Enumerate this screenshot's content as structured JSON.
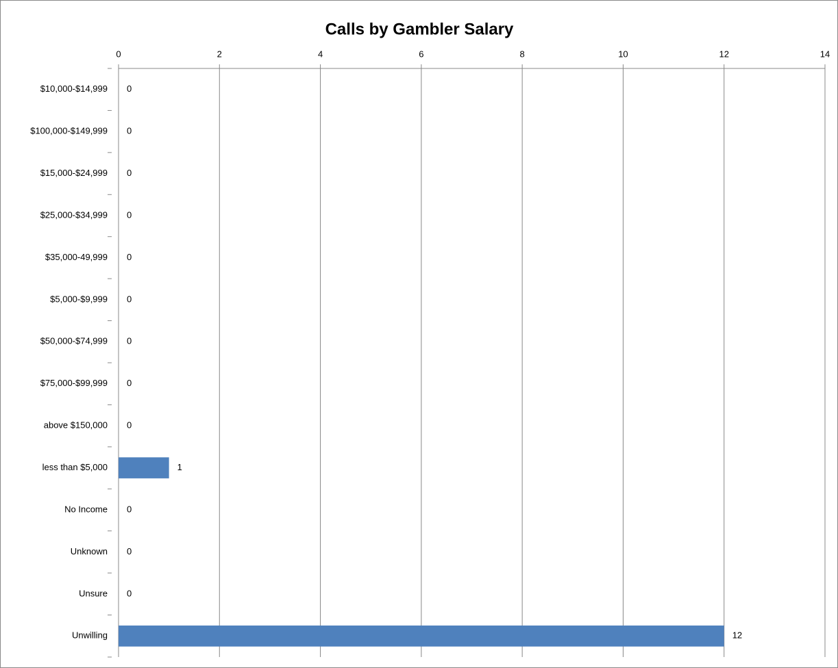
{
  "chart_data": {
    "type": "bar",
    "orientation": "horizontal",
    "title": "Calls by Gambler Salary",
    "categories": [
      "$10,000-$14,999",
      "$100,000-$149,999",
      "$15,000-$24,999",
      "$25,000-$34,999",
      "$35,000-49,999",
      "$5,000-$9,999",
      "$50,000-$74,999",
      "$75,000-$99,999",
      "above $150,000",
      "less than $5,000",
      "No Income",
      "Unknown",
      "Unsure",
      "Unwilling"
    ],
    "values": [
      0,
      0,
      0,
      0,
      0,
      0,
      0,
      0,
      0,
      1,
      0,
      0,
      0,
      12
    ],
    "color": "#4f81bd",
    "xlim": [
      0,
      14
    ],
    "xticks": [
      0,
      2,
      4,
      6,
      8,
      10,
      12,
      14
    ],
    "grid": true
  }
}
